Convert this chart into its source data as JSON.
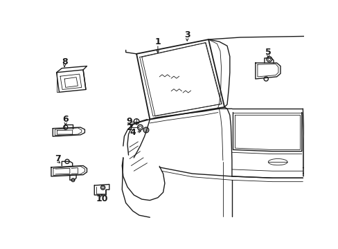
{
  "bg_color": "#ffffff",
  "line_color": "#1a1a1a",
  "lw": 1.0,
  "tlw": 0.6,
  "figsize": [
    4.89,
    3.6
  ],
  "dpi": 100
}
